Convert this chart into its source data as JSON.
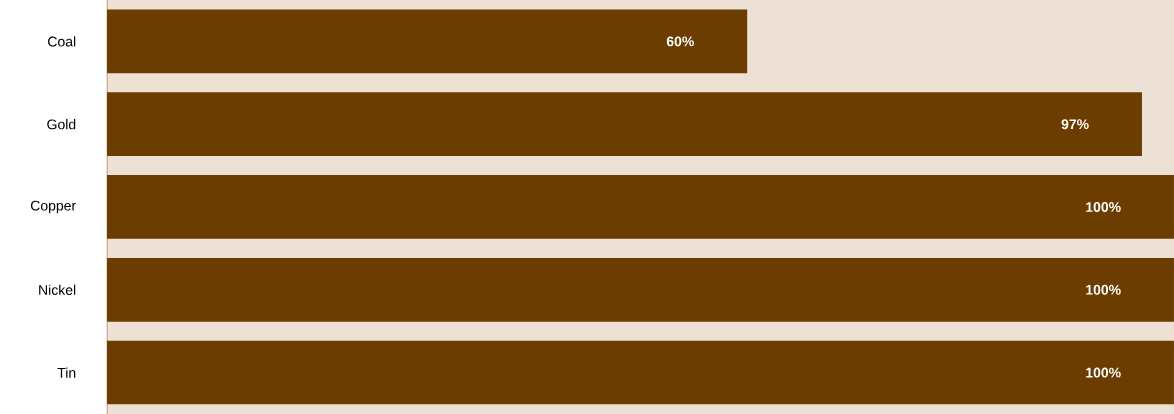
{
  "chart_data": {
    "type": "bar",
    "orientation": "horizontal",
    "categories": [
      "Coal",
      "Gold",
      "Copper",
      "Nickel",
      "Tin"
    ],
    "values": [
      60,
      97,
      100,
      100,
      100
    ],
    "value_labels": [
      "60%",
      "97%",
      "100%",
      "100%",
      "100%"
    ],
    "color": "#6b3d00",
    "xlim": [
      0,
      100
    ],
    "tick_labels": "y",
    "grid": false
  }
}
